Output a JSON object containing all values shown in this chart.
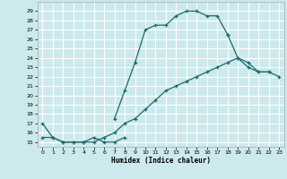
{
  "xlabel": "Humidex (Indice chaleur)",
  "bg_color": "#cce9ed",
  "line_color": "#1a6b6b",
  "grid_color": "#ffffff",
  "xlim": [
    -0.5,
    23.5
  ],
  "ylim": [
    14.5,
    30.0
  ],
  "yticks": [
    15,
    16,
    17,
    18,
    19,
    20,
    21,
    22,
    23,
    24,
    25,
    26,
    27,
    28,
    29
  ],
  "xticks": [
    0,
    1,
    2,
    3,
    4,
    5,
    6,
    7,
    8,
    9,
    10,
    11,
    12,
    13,
    14,
    15,
    16,
    17,
    18,
    19,
    20,
    21,
    22,
    23
  ],
  "series": [
    {
      "x": [
        0,
        1,
        2,
        3,
        4,
        5,
        6,
        7,
        8
      ],
      "y": [
        17.0,
        15.5,
        15.0,
        15.0,
        15.0,
        15.5,
        15.0,
        15.0,
        15.5
      ]
    },
    {
      "x": [
        7,
        8,
        9,
        10,
        11,
        12,
        13,
        14,
        15,
        16,
        17,
        18
      ],
      "y": [
        17.5,
        20.5,
        23.5,
        27.0,
        27.5,
        27.5,
        28.5,
        29.0,
        29.0,
        28.5,
        28.5,
        26.5
      ]
    },
    {
      "x": [
        18,
        19,
        20,
        21,
        22
      ],
      "y": [
        26.5,
        24.0,
        23.0,
        22.5,
        22.5
      ]
    },
    {
      "x": [
        0,
        1,
        2,
        3,
        4,
        5,
        6,
        7,
        8,
        9,
        10,
        11,
        12,
        13,
        14,
        15,
        16,
        17,
        18,
        19,
        20,
        21,
        22,
        23
      ],
      "y": [
        15.5,
        15.5,
        15.0,
        15.0,
        15.0,
        15.0,
        15.5,
        16.0,
        17.0,
        17.5,
        18.5,
        19.5,
        20.5,
        21.0,
        21.5,
        22.0,
        22.5,
        23.0,
        23.5,
        24.0,
        23.5,
        22.5,
        22.5,
        22.0
      ]
    }
  ]
}
